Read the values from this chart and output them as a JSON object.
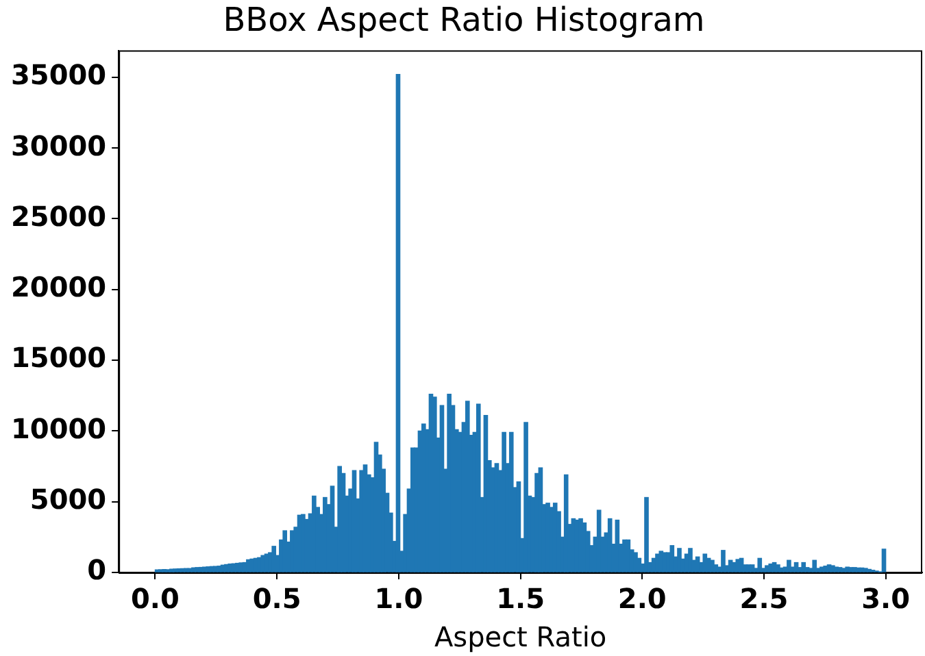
{
  "chart_data": {
    "type": "histogram",
    "title": "BBox Aspect Ratio Histogram",
    "xlabel": "Aspect Ratio",
    "color": "#1f77b4",
    "bins": [
      0,
      0.015,
      0.03,
      0.045,
      0.06,
      0.075,
      0.09,
      0.105,
      0.12,
      0.135,
      0.15,
      0.165,
      0.18,
      0.195,
      0.21,
      0.225,
      0.24,
      0.255,
      0.27,
      0.285,
      0.3,
      0.315,
      0.33,
      0.345,
      0.36,
      0.375,
      0.39,
      0.405,
      0.42,
      0.435,
      0.45,
      0.465,
      0.48,
      0.495,
      0.51,
      0.525,
      0.54,
      0.555,
      0.57,
      0.585,
      0.6,
      0.615,
      0.63,
      0.645,
      0.66,
      0.675,
      0.69,
      0.705,
      0.72,
      0.735,
      0.75,
      0.765,
      0.78,
      0.795,
      0.81,
      0.825,
      0.84,
      0.855,
      0.87,
      0.885,
      0.9,
      0.915,
      0.93,
      0.945,
      0.96,
      0.975,
      0.99,
      1.005,
      1.02,
      1.035,
      1.05,
      1.065,
      1.08,
      1.095,
      1.11,
      1.125,
      1.14,
      1.155,
      1.17,
      1.185,
      1.2,
      1.215,
      1.23,
      1.245,
      1.26,
      1.275,
      1.29,
      1.305,
      1.32,
      1.335,
      1.35,
      1.365,
      1.38,
      1.395,
      1.41,
      1.425,
      1.44,
      1.455,
      1.47,
      1.485,
      1.5,
      1.515,
      1.53,
      1.545,
      1.56,
      1.575,
      1.59,
      1.605,
      1.62,
      1.635,
      1.65,
      1.665,
      1.68,
      1.695,
      1.71,
      1.725,
      1.74,
      1.755,
      1.77,
      1.785,
      1.8,
      1.815,
      1.83,
      1.845,
      1.86,
      1.875,
      1.89,
      1.905,
      1.92,
      1.935,
      1.95,
      1.965,
      1.98,
      1.995,
      2.01,
      2.025,
      2.04,
      2.055,
      2.07,
      2.085,
      2.1,
      2.115,
      2.13,
      2.145,
      2.16,
      2.175,
      2.19,
      2.205,
      2.22,
      2.235,
      2.25,
      2.265,
      2.28,
      2.295,
      2.31,
      2.325,
      2.34,
      2.355,
      2.37,
      2.385,
      2.4,
      2.415,
      2.43,
      2.445,
      2.46,
      2.475,
      2.49,
      2.505,
      2.52,
      2.535,
      2.55,
      2.565,
      2.58,
      2.595,
      2.61,
      2.625,
      2.64,
      2.655,
      2.67,
      2.685,
      2.7,
      2.715,
      2.73,
      2.745,
      2.76,
      2.775,
      2.79,
      2.805,
      2.82,
      2.835,
      2.85,
      2.865,
      2.88,
      2.895,
      2.91,
      2.925,
      2.94,
      2.955,
      2.97,
      2.985,
      3
    ],
    "values": [
      190,
      200,
      210,
      200,
      240,
      250,
      260,
      270,
      280,
      280,
      330,
      350,
      360,
      380,
      400,
      420,
      430,
      450,
      520,
      560,
      600,
      620,
      650,
      680,
      700,
      900,
      950,
      1000,
      1050,
      1200,
      1300,
      1400,
      1850,
      1200,
      2300,
      2950,
      2150,
      2950,
      3200,
      4050,
      4100,
      3750,
      4150,
      5400,
      4600,
      4100,
      5300,
      4800,
      6100,
      3200,
      7500,
      7000,
      5400,
      5900,
      7200,
      5200,
      7200,
      7600,
      6900,
      6700,
      9200,
      8300,
      7300,
      5600,
      4200,
      2200,
      35200,
      1500,
      4100,
      5900,
      8800,
      8800,
      10000,
      10500,
      10100,
      12600,
      12400,
      9500,
      11800,
      7300,
      12600,
      11800,
      10100,
      9900,
      10600,
      12100,
      9700,
      9900,
      11900,
      5300,
      11100,
      7900,
      7400,
      7700,
      7200,
      9900,
      7700,
      9900,
      6000,
      6400,
      2400,
      10600,
      5400,
      5300,
      7000,
      7400,
      4800,
      4900,
      4600,
      4900,
      4300,
      2500,
      6900,
      3400,
      3800,
      3700,
      3800,
      3500,
      2900,
      1900,
      2500,
      4400,
      2500,
      2800,
      3800,
      2000,
      3700,
      2000,
      2300,
      2300,
      1600,
      1400,
      1000,
      600,
      5300,
      700,
      1000,
      1300,
      1500,
      1400,
      1400,
      1900,
      1100,
      1700,
      950,
      1300,
      1700,
      860,
      1100,
      700,
      1300,
      1000,
      860,
      540,
      380,
      1560,
      480,
      860,
      700,
      920,
      1000,
      540,
      540,
      540,
      290,
      1000,
      290,
      480,
      600,
      700,
      540,
      320,
      380,
      860,
      380,
      700,
      350,
      700,
      350,
      290,
      860,
      290,
      380,
      450,
      540,
      480,
      380,
      350,
      290,
      380,
      350,
      350,
      320,
      320,
      290,
      220,
      160,
      100,
      30,
      1650
    ],
    "xlim": [
      -0.15,
      3.15
    ],
    "xticks": [
      {
        "value": 0,
        "label": "0.0"
      },
      {
        "value": 0.5,
        "label": "0.5"
      },
      {
        "value": 1,
        "label": "1.0"
      },
      {
        "value": 1.5,
        "label": "1.5"
      },
      {
        "value": 2,
        "label": "2.0"
      },
      {
        "value": 2.5,
        "label": "2.5"
      },
      {
        "value": 3,
        "label": "3.0"
      }
    ],
    "ylim": [
      0,
      36900
    ],
    "yticks": [
      0,
      5000,
      10000,
      15000,
      20000,
      25000,
      30000,
      35000
    ],
    "grid": false,
    "legend": false
  }
}
